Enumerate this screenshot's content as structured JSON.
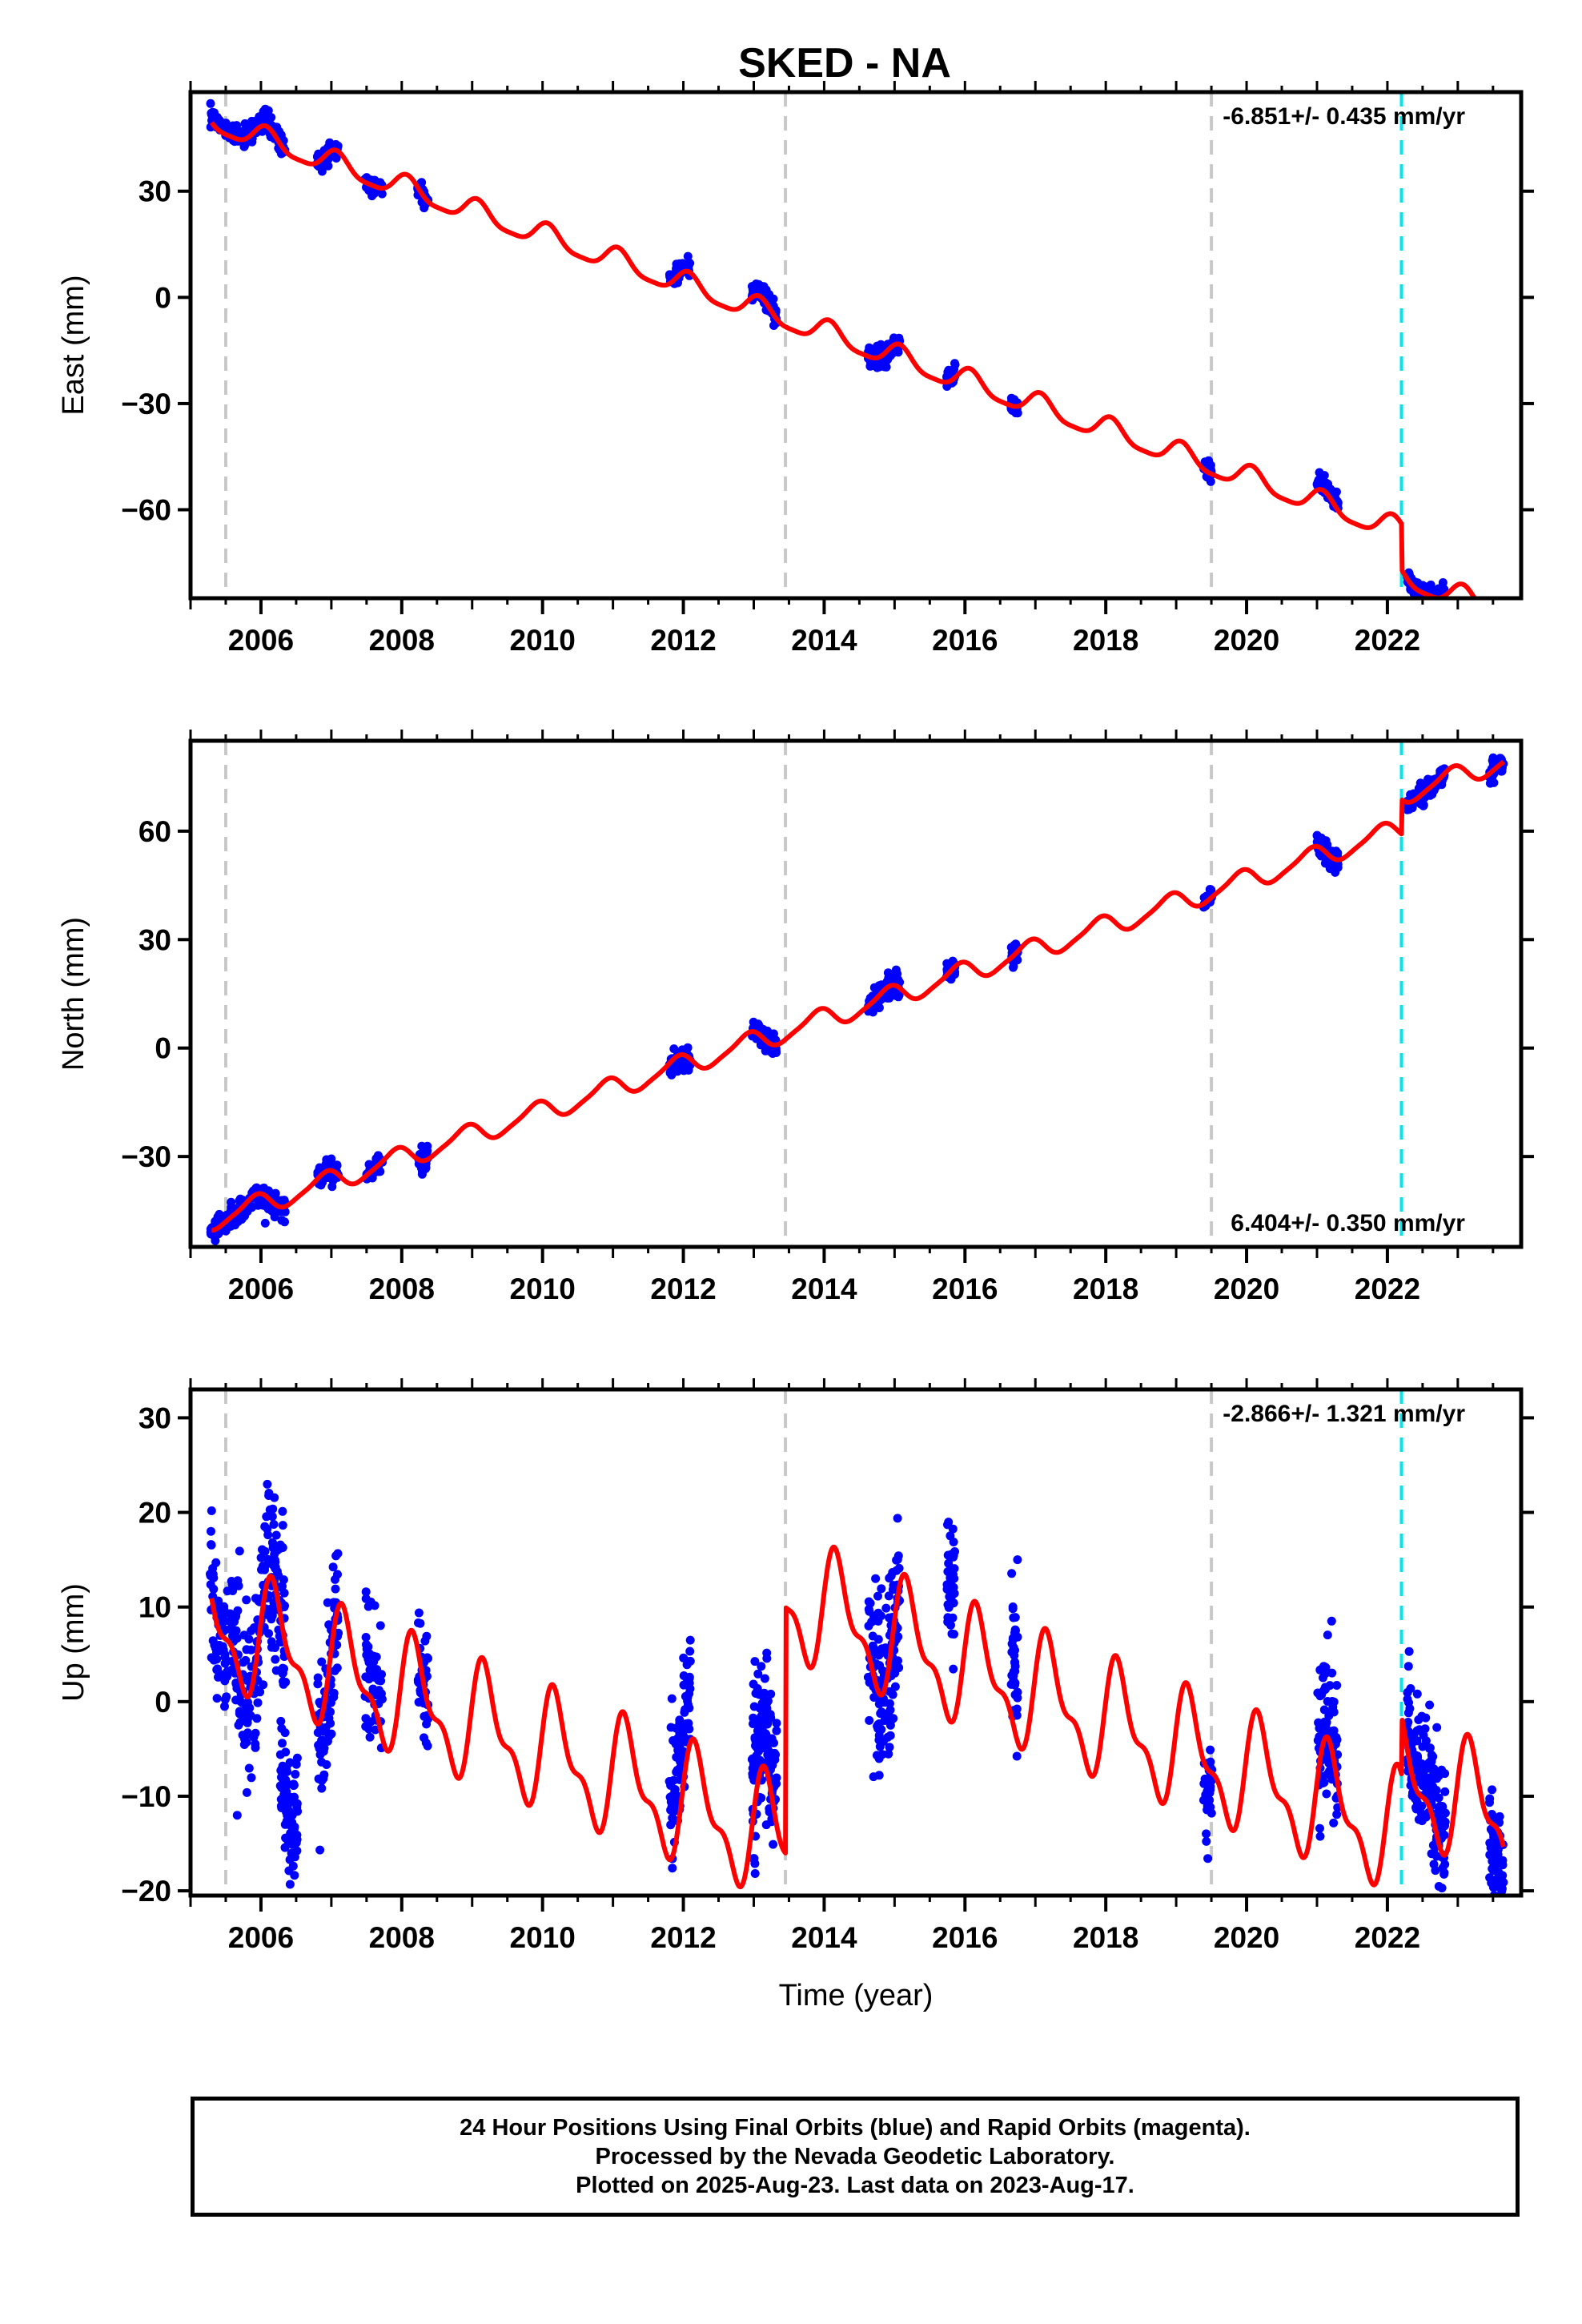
{
  "title": "SKED - NA",
  "colors": {
    "final_orbits": "#0000ff",
    "model_fit": "#ff0000",
    "equipment_change": "#c8c8c8",
    "earthquake": "#00e5ee",
    "frame": "#000000"
  },
  "caption": {
    "line1": "24 Hour Positions Using Final Orbits (blue) and Rapid Orbits (magenta).",
    "line2": "Processed by the Nevada Geodetic Laboratory.",
    "line3": "Plotted on 2025-Aug-23. Last data on 2023-Aug-17."
  },
  "chart_data": [
    {
      "type": "scatter",
      "component": "east",
      "ylabel": "East (mm)",
      "xlabel": "",
      "rate_label": "-6.851+/- 0.435 mm/yr",
      "rate_position": "top-right",
      "xlim": [
        2005.0,
        2023.9
      ],
      "ylim": [
        -85,
        58
      ],
      "xticks": [
        2006,
        2008,
        2010,
        2012,
        2014,
        2016,
        2018,
        2020,
        2022
      ],
      "xtick_labels": [
        "2006",
        "2008",
        "2010",
        "2012",
        "2014",
        "2016",
        "2018",
        "2020",
        "2022"
      ],
      "yticks": [
        30,
        0,
        -30,
        -60
      ],
      "ytick_labels": [
        "30",
        "0",
        "−30",
        "−60"
      ],
      "equipment_lines": [
        2005.5,
        2013.45,
        2019.5
      ],
      "earthquake_lines": [
        2022.2
      ],
      "model": {
        "trend_anchor": [
          2005.4,
          49.0
        ],
        "rate": -6.851,
        "annual_amp": 3.2,
        "annual_phase": 1.1,
        "semiannual_amp": 0.8,
        "steps": [
          {
            "year": 2022.2,
            "offset": -13.0
          }
        ]
      },
      "data_clusters": [
        {
          "center": 2005.4,
          "width": 0.25,
          "points": 40,
          "offset": 1.5,
          "scatter": 1.2
        },
        {
          "center": 2005.95,
          "width": 0.8,
          "points": 150,
          "offset": 1.0,
          "scatter": 1.6
        },
        {
          "center": 2006.95,
          "width": 0.3,
          "points": 70,
          "offset": 0.0,
          "scatter": 1.3
        },
        {
          "center": 2007.6,
          "width": 0.25,
          "points": 45,
          "offset": 0.0,
          "scatter": 1.2
        },
        {
          "center": 2008.3,
          "width": 0.15,
          "points": 40,
          "offset": 0.5,
          "scatter": 1.5
        },
        {
          "center": 2011.95,
          "width": 0.3,
          "points": 80,
          "offset": 1.0,
          "scatter": 1.2
        },
        {
          "center": 2013.15,
          "width": 0.35,
          "points": 110,
          "offset": 1.0,
          "scatter": 1.2
        },
        {
          "center": 2014.85,
          "width": 0.45,
          "points": 120,
          "offset": -0.5,
          "scatter": 1.5
        },
        {
          "center": 2015.8,
          "width": 0.12,
          "points": 35,
          "offset": 1.0,
          "scatter": 1.2
        },
        {
          "center": 2016.7,
          "width": 0.1,
          "points": 30,
          "offset": 0.5,
          "scatter": 1.4
        },
        {
          "center": 2019.45,
          "width": 0.12,
          "points": 30,
          "offset": 0.5,
          "scatter": 1.3
        },
        {
          "center": 2021.15,
          "width": 0.3,
          "points": 80,
          "offset": 1.5,
          "scatter": 1.2
        },
        {
          "center": 2022.55,
          "width": 0.55,
          "points": 130,
          "offset": 0.0,
          "scatter": 1.3
        },
        {
          "center": 2023.55,
          "width": 0.2,
          "points": 60,
          "offset": 0.5,
          "scatter": 1.2
        }
      ]
    },
    {
      "type": "scatter",
      "component": "north",
      "ylabel": "North (mm)",
      "xlabel": "",
      "rate_label": "6.404+/- 0.350 mm/yr",
      "rate_position": "bottom-right",
      "xlim": [
        2005.0,
        2023.9
      ],
      "ylim": [
        -55,
        85
      ],
      "xticks": [
        2006,
        2008,
        2010,
        2012,
        2014,
        2016,
        2018,
        2020,
        2022
      ],
      "xtick_labels": [
        "2006",
        "2008",
        "2010",
        "2012",
        "2014",
        "2016",
        "2018",
        "2020",
        "2022"
      ],
      "yticks": [
        60,
        30,
        0,
        -30
      ],
      "ytick_labels": [
        "60",
        "30",
        "0",
        "−30"
      ],
      "equipment_lines": [
        2005.5,
        2013.45,
        2019.5
      ],
      "earthquake_lines": [
        2022.2
      ],
      "model": {
        "trend_anchor": [
          2005.4,
          -47.0
        ],
        "rate": 6.404,
        "annual_amp": 2.8,
        "annual_phase": 2.2,
        "semiannual_amp": 0.6,
        "steps": [
          {
            "year": 2022.2,
            "offset": 9.5
          }
        ]
      },
      "data_clusters": [
        {
          "center": 2005.4,
          "width": 0.25,
          "points": 40,
          "offset": -0.5,
          "scatter": 1.6
        },
        {
          "center": 2005.95,
          "width": 0.8,
          "points": 150,
          "offset": -0.5,
          "scatter": 1.6
        },
        {
          "center": 2006.95,
          "width": 0.3,
          "points": 70,
          "offset": 0.0,
          "scatter": 1.4
        },
        {
          "center": 2007.6,
          "width": 0.25,
          "points": 45,
          "offset": 0.0,
          "scatter": 1.2
        },
        {
          "center": 2008.3,
          "width": 0.15,
          "points": 40,
          "offset": 0.0,
          "scatter": 1.4
        },
        {
          "center": 2011.95,
          "width": 0.3,
          "points": 80,
          "offset": -1.5,
          "scatter": 1.3
        },
        {
          "center": 2013.15,
          "width": 0.35,
          "points": 110,
          "offset": 0.0,
          "scatter": 1.3
        },
        {
          "center": 2014.85,
          "width": 0.45,
          "points": 120,
          "offset": 0.0,
          "scatter": 1.6
        },
        {
          "center": 2015.8,
          "width": 0.12,
          "points": 35,
          "offset": 0.0,
          "scatter": 1.2
        },
        {
          "center": 2016.7,
          "width": 0.1,
          "points": 30,
          "offset": 0.0,
          "scatter": 1.4
        },
        {
          "center": 2019.45,
          "width": 0.12,
          "points": 30,
          "offset": 0.5,
          "scatter": 1.3
        },
        {
          "center": 2021.15,
          "width": 0.3,
          "points": 80,
          "offset": 0.0,
          "scatter": 1.8
        },
        {
          "center": 2022.55,
          "width": 0.55,
          "points": 130,
          "offset": 0.0,
          "scatter": 1.3
        },
        {
          "center": 2023.55,
          "width": 0.2,
          "points": 60,
          "offset": 0.0,
          "scatter": 1.2
        }
      ]
    },
    {
      "type": "scatter",
      "component": "up",
      "ylabel": "Up (mm)",
      "xlabel": "Time (year)",
      "rate_label": "-2.866+/- 1.321 mm/yr",
      "rate_position": "top-right",
      "xlim": [
        2005.0,
        2023.9
      ],
      "ylim": [
        -20.5,
        33
      ],
      "xticks": [
        2006,
        2008,
        2010,
        2012,
        2014,
        2016,
        2018,
        2020,
        2022
      ],
      "xtick_labels": [
        "2006",
        "2008",
        "2010",
        "2012",
        "2014",
        "2016",
        "2018",
        "2020",
        "2022"
      ],
      "yticks": [
        30,
        20,
        10,
        0,
        -10,
        -20
      ],
      "ytick_labels": [
        "30",
        "20",
        "10",
        "0",
        "−10",
        "−20"
      ],
      "equipment_lines": [
        2005.5,
        2013.45,
        2019.5
      ],
      "earthquake_lines": [
        2022.2
      ],
      "model": {
        "trend_anchor": [
          2005.4,
          8.0
        ],
        "rate": -2.866,
        "annual_amp": 5.5,
        "annual_phase": 0.3,
        "semiannual_amp": 2.5,
        "steps": [
          {
            "year": 2013.45,
            "offset": 26.0
          },
          {
            "year": 2022.2,
            "offset": 6.0
          }
        ]
      },
      "data_clusters": [
        {
          "center": 2005.4,
          "width": 0.25,
          "points": 60,
          "offset": 0.0,
          "scatter": 3.5
        },
        {
          "center": 2005.95,
          "width": 0.8,
          "points": 220,
          "offset": 0.0,
          "scatter": 4.5
        },
        {
          "center": 2006.4,
          "width": 0.25,
          "points": 90,
          "offset": -16.0,
          "scatter": 3.0
        },
        {
          "center": 2006.95,
          "width": 0.3,
          "points": 90,
          "offset": -2.0,
          "scatter": 4.0
        },
        {
          "center": 2007.6,
          "width": 0.25,
          "points": 60,
          "offset": 3.0,
          "scatter": 3.5
        },
        {
          "center": 2008.3,
          "width": 0.15,
          "points": 40,
          "offset": 0.0,
          "scatter": 3.0
        },
        {
          "center": 2011.95,
          "width": 0.3,
          "points": 100,
          "offset": 6.0,
          "scatter": 3.0
        },
        {
          "center": 2013.15,
          "width": 0.35,
          "points": 140,
          "offset": 4.0,
          "scatter": 4.0
        },
        {
          "center": 2014.85,
          "width": 0.45,
          "points": 150,
          "offset": 0.0,
          "scatter": 4.5
        },
        {
          "center": 2015.8,
          "width": 0.12,
          "points": 45,
          "offset": 14.0,
          "scatter": 3.5
        },
        {
          "center": 2016.7,
          "width": 0.1,
          "points": 40,
          "offset": 8.0,
          "scatter": 4.0
        },
        {
          "center": 2019.45,
          "width": 0.12,
          "points": 35,
          "offset": -2.0,
          "scatter": 3.5
        },
        {
          "center": 2021.15,
          "width": 0.3,
          "points": 100,
          "offset": 1.5,
          "scatter": 4.0
        },
        {
          "center": 2022.55,
          "width": 0.55,
          "points": 170,
          "offset": 3.0,
          "scatter": 3.5
        },
        {
          "center": 2023.55,
          "width": 0.2,
          "points": 70,
          "offset": -3.0,
          "scatter": 3.0
        }
      ]
    }
  ]
}
